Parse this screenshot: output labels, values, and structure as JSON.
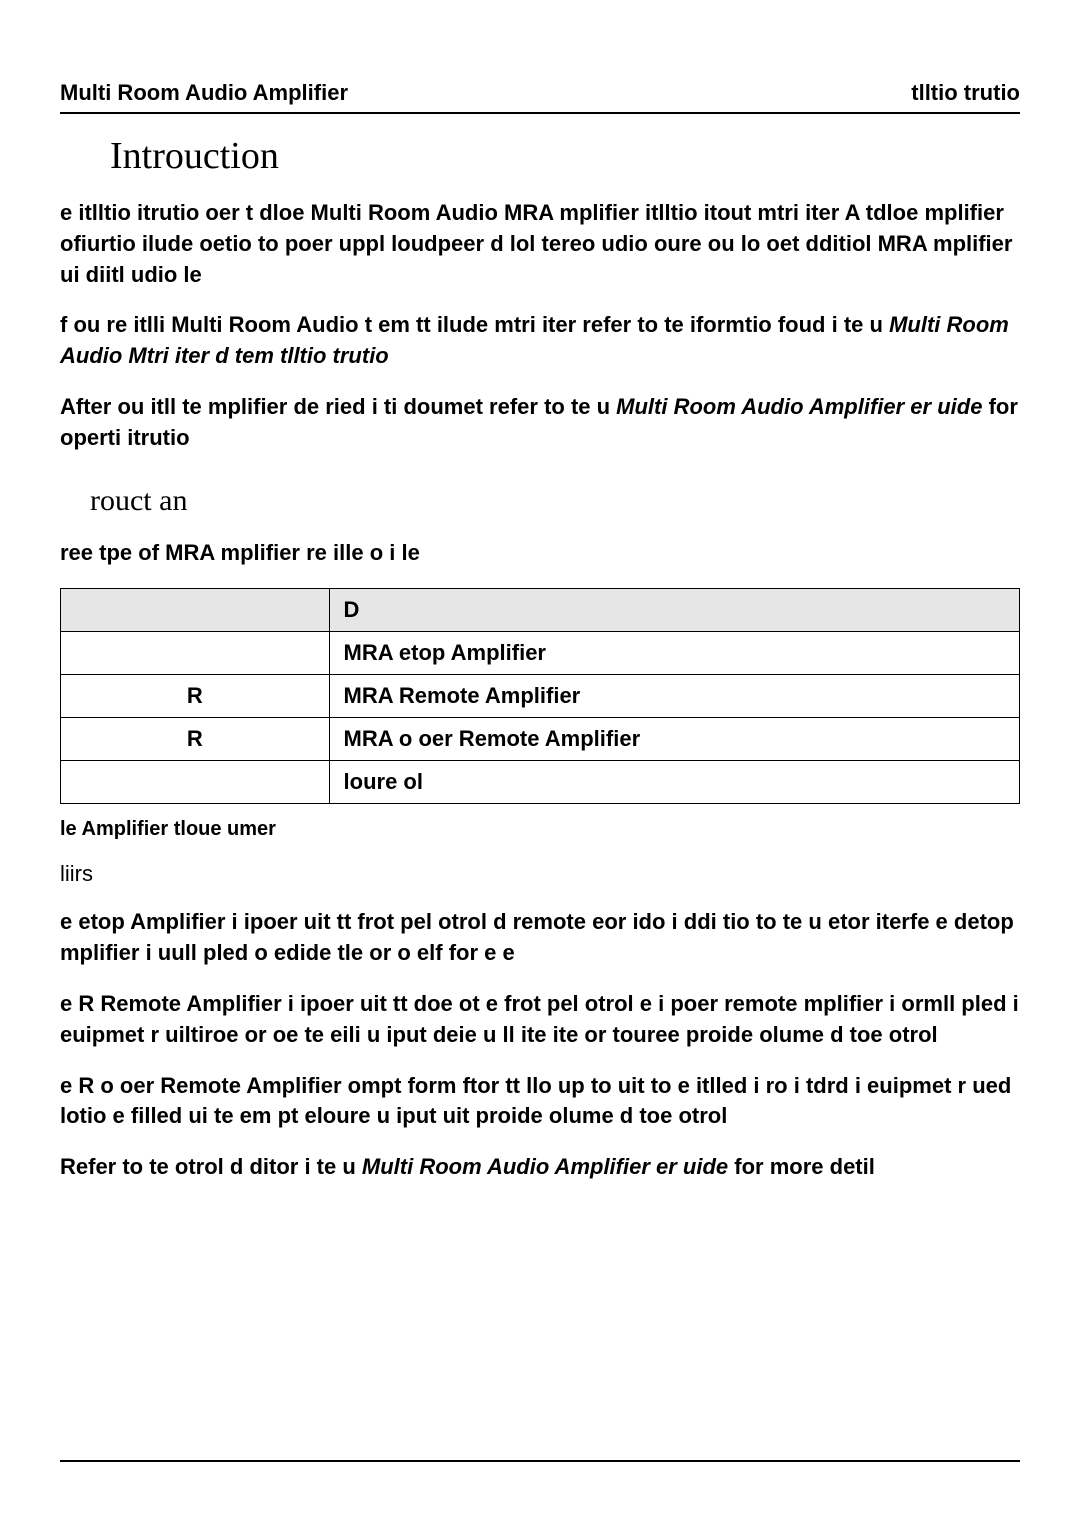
{
  "header": {
    "left": "Multi Room Audio Amplifier",
    "right": "tlltio trutio"
  },
  "section_title": "Introuction",
  "para1": "e itlltio itrutio oer  t                           dloe Multi Room Audio MRA mplifier itlltio itout  mtri              iter A tdloe mplifier ofiurtio ilude oetio to  poer uppl loudpeer d  lol tereo udio oure ou  lo oet dditiol MRA mplifier ui diitl udio le",
  "para2_a": "f ou re itlli  Multi Room Audio t              em tt ilude  mtri iter refer to te iformtio foud i te          u        ",
  "para2_b": "Multi Room Audio Mtri iter d tem tlltio trutio",
  "para3_a": "After ou itll te mplifier  de         ried i ti doumet refer to te             u         ",
  "para3_b": "Multi Room Audio Amplifier er uide",
  "para3_c": "     for operti itrutio",
  "sub_title": "rouct an",
  "para4": "ree tpe of MRA mplifier re ille  o i le",
  "table": {
    "header_col2": "D",
    "rows": [
      {
        "cat": "",
        "desc": "MRA etop Amplifier"
      },
      {
        "cat": "R",
        "desc": "MRA Remote Amplifier"
      },
      {
        "cat": "R",
        "desc": "MRA o oer Remote Amplifier"
      },
      {
        "cat": "",
        "desc": "loure ol"
      }
    ]
  },
  "caption": "le   Amplifier tloue umer",
  "plain5": "liirs",
  "para6": "e                      etop  Amplifier     i   ipoer  uit  tt   frot  pel otrol d remote eor ido i ddi                       tio to te u etor iterfe e detop mplifier i uull pled o  edide tle or o  elf for e e",
  "para7": "e      R  Remote  Amplifier  i   ipoer  uit  tt  doe  ot  e  frot pel otrol e i poer remote mplifier i ormll pled i  euipmet r uiltiroe or oe te eili u iput deie u  ll ite  ite or  touree proide olume d toe otrol",
  "para8": "e      R o  oer Remote Amplifier   ompt form ftor tt llo up to  uit to e itlled i  ro i  tdrd i euipmet r ued lotio  e  filled  ui  te   em                             pt  eloure  u  iput  uit  proide olume d toe otrol",
  "para9_a": "Refer  to  te  otrol      d  ditor  i  te              u         ",
  "para9_b": "Multi  Room  Audio  Amplifier er uide",
  "para9_c": "       for more detil"
}
